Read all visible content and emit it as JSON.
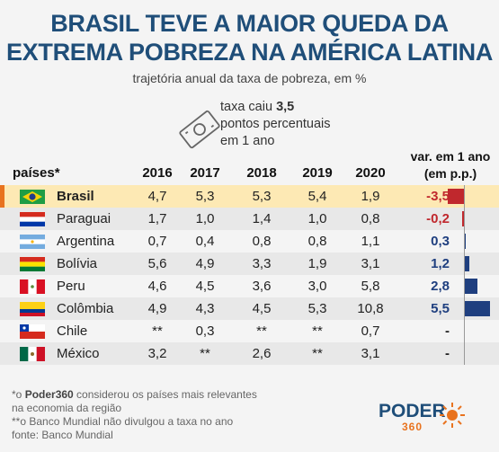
{
  "header": {
    "title_line1": "BRASIL TEVE A MAIOR QUEDA DA",
    "title_line2": "EXTREMA POBREZA NA AMÉRICA LATINA",
    "subtitle": "trajetória anual da taxa de pobreza, em %"
  },
  "note": {
    "line1_prefix": "taxa caiu ",
    "line1_value": "3,5",
    "line2": "pontos percentuais",
    "line3": "em 1 ano"
  },
  "icons": {
    "money": "money-bill-icon",
    "logo": "poder360-sun-icon"
  },
  "colors": {
    "title": "#1f4e79",
    "negative": "#c0282d",
    "positive": "#1f3f7f",
    "highlight": "#fde9b4",
    "accent": "#e8731f"
  },
  "table_headers": {
    "country": "países*",
    "var_line1": "var. em 1 ano",
    "var_line2": "(em p.p.)"
  },
  "chart_data": {
    "type": "table",
    "years": [
      "2016",
      "2017",
      "2018",
      "2019",
      "2020"
    ],
    "rows": [
      {
        "country": "Brasil",
        "flag": "brazil-flag-icon",
        "values": [
          "4,7",
          "5,3",
          "5,3",
          "5,4",
          "1,9"
        ],
        "var_label": "-3,5",
        "var": -3.5
      },
      {
        "country": "Paraguai",
        "flag": "paraguay-flag-icon",
        "values": [
          "1,7",
          "1,0",
          "1,4",
          "1,0",
          "0,8"
        ],
        "var_label": "-0,2",
        "var": -0.2
      },
      {
        "country": "Argentina",
        "flag": "argentina-flag-icon",
        "values": [
          "0,7",
          "0,4",
          "0,8",
          "0,8",
          "1,1"
        ],
        "var_label": "0,3",
        "var": 0.3
      },
      {
        "country": "Bolívia",
        "flag": "bolivia-flag-icon",
        "values": [
          "5,6",
          "4,9",
          "3,3",
          "1,9",
          "3,1"
        ],
        "var_label": "1,2",
        "var": 1.2
      },
      {
        "country": "Peru",
        "flag": "peru-flag-icon",
        "values": [
          "4,6",
          "4,5",
          "3,6",
          "3,0",
          "5,8"
        ],
        "var_label": "2,8",
        "var": 2.8
      },
      {
        "country": "Colômbia",
        "flag": "colombia-flag-icon",
        "values": [
          "4,9",
          "4,3",
          "4,5",
          "5,3",
          "10,8"
        ],
        "var_label": "5,5",
        "var": 5.5
      },
      {
        "country": "Chile",
        "flag": "chile-flag-icon",
        "values": [
          "**",
          "0,3",
          "**",
          "**",
          "0,7"
        ],
        "var_label": "-",
        "var": null
      },
      {
        "country": "México",
        "flag": "mexico-flag-icon",
        "values": [
          "3,2",
          "**",
          "2,6",
          "**",
          "3,1"
        ],
        "var_label": "-",
        "var": null
      }
    ]
  },
  "footer": {
    "line1_prefix": "*o ",
    "line1_brand": "Poder360",
    "line1_suffix": " considerou os países mais relevantes",
    "line2": "na economia da região",
    "line3": "**o Banco Mundial não divulgou a taxa no ano",
    "line4": "fonte: Banco Mundial"
  },
  "logo": {
    "word": "PODER",
    "num": "360"
  }
}
